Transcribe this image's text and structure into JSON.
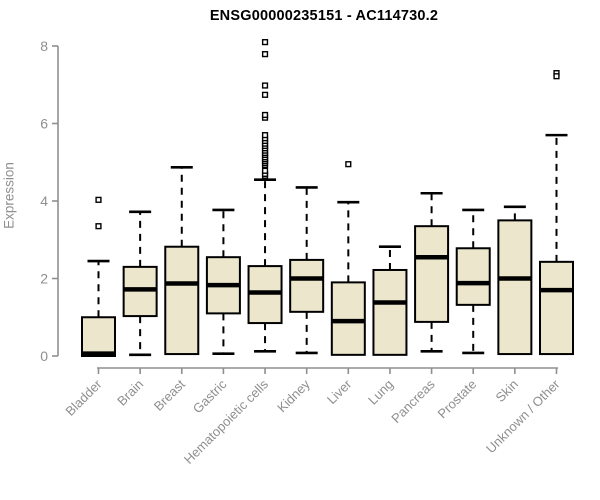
{
  "title": "ENSG00000235151 - AC114730.2",
  "chart_data": {
    "type": "boxplot",
    "title": "ENSG00000235151 - AC114730.2",
    "xlabel": "",
    "ylabel": "Expression",
    "ylim": [
      0,
      8
    ],
    "yticks": [
      0,
      2,
      4,
      6,
      8
    ],
    "grid": false,
    "legend": "none",
    "colors": {
      "box_fill": "#ECE7CC",
      "box_stroke": "#000000",
      "axis": "#8f8f8f",
      "tick_label": "#8f8f8f",
      "title_text": "#000000"
    },
    "categories": [
      "Bladder",
      "Brain",
      "Breast",
      "Gastric",
      "Hematopoietic cells",
      "Kidney",
      "Liver",
      "Lung",
      "Pancreas",
      "Prostate",
      "Skin",
      "Unknown / Other"
    ],
    "series": [
      {
        "label": "Bladder",
        "whisker_low": 0.0,
        "q1": 0.0,
        "median": 0.06,
        "q3": 1.0,
        "whisker_high": 2.45,
        "outliers": [
          3.35,
          4.03
        ]
      },
      {
        "label": "Brain",
        "whisker_low": 0.03,
        "q1": 1.03,
        "median": 1.72,
        "q3": 2.3,
        "whisker_high": 3.72,
        "outliers": []
      },
      {
        "label": "Breast",
        "whisker_low": 0.05,
        "q1": 0.05,
        "median": 1.87,
        "q3": 2.82,
        "whisker_high": 4.87,
        "outliers": []
      },
      {
        "label": "Gastric",
        "whisker_low": 0.06,
        "q1": 1.1,
        "median": 1.83,
        "q3": 2.55,
        "whisker_high": 3.77,
        "outliers": []
      },
      {
        "label": "Hematopoietic cells",
        "whisker_low": 0.12,
        "q1": 0.85,
        "median": 1.64,
        "q3": 2.32,
        "whisker_high": 4.55,
        "outliers": [
          4.65,
          4.7,
          4.78,
          4.93,
          4.98,
          5.03,
          5.08,
          5.13,
          5.19,
          5.24,
          5.3,
          5.36,
          5.42,
          5.48,
          5.55,
          5.62,
          5.7,
          6.15,
          6.22,
          6.74,
          6.98,
          7.79,
          8.1
        ]
      },
      {
        "label": "Kidney",
        "whisker_low": 0.08,
        "q1": 1.14,
        "median": 2.0,
        "q3": 2.48,
        "whisker_high": 4.35,
        "outliers": []
      },
      {
        "label": "Liver",
        "whisker_low": 0.03,
        "q1": 0.03,
        "median": 0.9,
        "q3": 1.9,
        "whisker_high": 3.97,
        "outliers": [
          4.95
        ]
      },
      {
        "label": "Lung",
        "whisker_low": 0.03,
        "q1": 0.03,
        "median": 1.38,
        "q3": 2.22,
        "whisker_high": 2.82,
        "outliers": []
      },
      {
        "label": "Pancreas",
        "whisker_low": 0.12,
        "q1": 0.88,
        "median": 2.55,
        "q3": 3.35,
        "whisker_high": 4.2,
        "outliers": []
      },
      {
        "label": "Prostate",
        "whisker_low": 0.08,
        "q1": 1.32,
        "median": 1.88,
        "q3": 2.78,
        "whisker_high": 3.77,
        "outliers": []
      },
      {
        "label": "Skin",
        "whisker_low": 0.05,
        "q1": 0.05,
        "median": 2.0,
        "q3": 3.5,
        "whisker_high": 3.85,
        "outliers": []
      },
      {
        "label": "Unknown / Other",
        "whisker_low": 0.05,
        "q1": 0.05,
        "median": 1.7,
        "q3": 2.43,
        "whisker_high": 5.7,
        "outliers": [
          7.3,
          7.22
        ]
      }
    ]
  }
}
